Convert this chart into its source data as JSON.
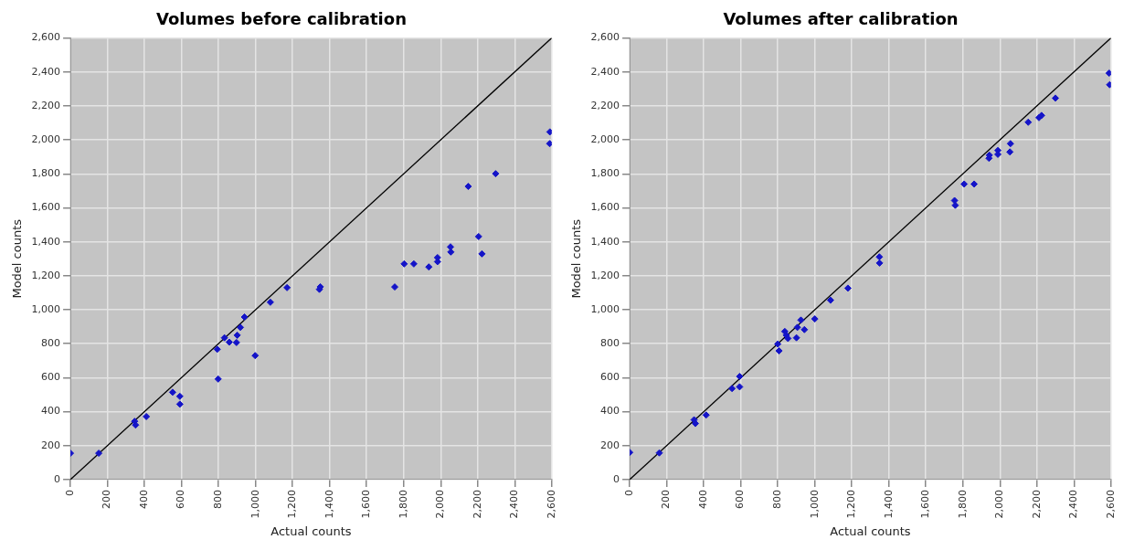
{
  "chart_data": [
    {
      "type": "scatter",
      "title": "Volumes before calibration",
      "xlabel": "Actual counts",
      "ylabel": "Model counts",
      "xlim": [
        0,
        2600
      ],
      "ylim": [
        0,
        2600
      ],
      "xticks": [
        0,
        200,
        400,
        600,
        800,
        {
          "value": 1000,
          "label": "1,000"
        },
        {
          "value": 1200,
          "label": "1,200"
        },
        {
          "value": 1400,
          "label": "1,400"
        },
        {
          "value": 1600,
          "label": "1,600"
        },
        {
          "value": 1800,
          "label": "1,800"
        },
        {
          "value": 2000,
          "label": "2,000"
        },
        {
          "value": 2200,
          "label": "2,200"
        },
        {
          "value": 2400,
          "label": "2,400"
        },
        {
          "value": 2600,
          "label": "2,600"
        }
      ],
      "yticks": [
        0,
        200,
        400,
        600,
        800,
        {
          "value": 1000,
          "label": "1,000"
        },
        {
          "value": 1200,
          "label": "1,200"
        },
        {
          "value": 1400,
          "label": "1,400"
        },
        {
          "value": 1600,
          "label": "1,600"
        },
        {
          "value": 1800,
          "label": "1,800"
        },
        {
          "value": 2000,
          "label": "2,000"
        },
        {
          "value": 2200,
          "label": "2,200"
        },
        {
          "value": 2400,
          "label": "2,400"
        },
        {
          "value": 2600,
          "label": "2,600"
        }
      ],
      "grid": true,
      "legend": false,
      "marker": "diamond",
      "series": [
        {
          "type": "line",
          "color": "#000000",
          "x": [
            0,
            2600
          ],
          "values": [
            0,
            2600
          ],
          "marker": "none"
        },
        {
          "color": "#1414c8",
          "x": [
            0,
            153,
            347,
            352,
            410,
            552,
            591,
            591,
            798,
            793,
            832,
            858,
            897,
            901,
            918,
            940,
            998,
            1080,
            1170,
            1345,
            1350,
            1752,
            1803,
            1855,
            1936,
            1983,
            1983,
            2053,
            2055,
            2205,
            2223,
            2149,
            2297,
            2589,
            2590
          ],
          "values": [
            155,
            155,
            343,
            321,
            371,
            514,
            490,
            444,
            592,
            767,
            835,
            809,
            807,
            850,
            896,
            957,
            730,
            1044,
            1130,
            1120,
            1135,
            1134,
            1270,
            1270,
            1252,
            1307,
            1283,
            1370,
            1340,
            1431,
            1329,
            1726,
            1801,
            1978,
            2047
          ]
        }
      ]
    },
    {
      "type": "scatter",
      "title": "Volumes after calibration",
      "xlabel": "Actual counts",
      "ylabel": "Model counts",
      "xlim": [
        0,
        2600
      ],
      "ylim": [
        0,
        2600
      ],
      "xticks": [
        0,
        200,
        400,
        600,
        800,
        {
          "value": 1000,
          "label": "1,000"
        },
        {
          "value": 1200,
          "label": "1,200"
        },
        {
          "value": 1400,
          "label": "1,400"
        },
        {
          "value": 1600,
          "label": "1,600"
        },
        {
          "value": 1800,
          "label": "1,800"
        },
        {
          "value": 2000,
          "label": "2,000"
        },
        {
          "value": 2200,
          "label": "2,200"
        },
        {
          "value": 2400,
          "label": "2,400"
        },
        {
          "value": 2600,
          "label": "2,600"
        }
      ],
      "yticks": [
        0,
        200,
        400,
        600,
        800,
        {
          "value": 1000,
          "label": "1,000"
        },
        {
          "value": 1200,
          "label": "1,200"
        },
        {
          "value": 1400,
          "label": "1,400"
        },
        {
          "value": 1600,
          "label": "1,600"
        },
        {
          "value": 1800,
          "label": "1,800"
        },
        {
          "value": 2000,
          "label": "2,000"
        },
        {
          "value": 2200,
          "label": "2,200"
        },
        {
          "value": 2400,
          "label": "2,400"
        },
        {
          "value": 2600,
          "label": "2,600"
        }
      ],
      "grid": true,
      "legend": false,
      "marker": "diamond",
      "series": [
        {
          "type": "line",
          "color": "#000000",
          "x": [
            0,
            2600
          ],
          "values": [
            0,
            2600
          ],
          "marker": "none"
        },
        {
          "color": "#1414c8",
          "x": [
            0,
            160,
            348,
            355,
            413,
            553,
            594,
            594,
            800,
            807,
            838,
            846,
            855,
            901,
            906,
            944,
            925,
            1000,
            1085,
            1179,
            1349,
            1350,
            1755,
            1759,
            1807,
            1861,
            1941,
            1943,
            1989,
            1989,
            2057,
            2054,
            2153,
            2211,
            2225,
            2300,
            2590,
            2593
          ],
          "values": [
            160,
            157,
            352,
            330,
            380,
            536,
            546,
            607,
            798,
            758,
            872,
            850,
            831,
            835,
            896,
            883,
            939,
            946,
            1056,
            1127,
            1311,
            1275,
            1643,
            1615,
            1740,
            1740,
            1892,
            1910,
            1938,
            1915,
            1978,
            1929,
            2104,
            2131,
            2144,
            2246,
            2393,
            2325
          ]
        }
      ]
    }
  ]
}
